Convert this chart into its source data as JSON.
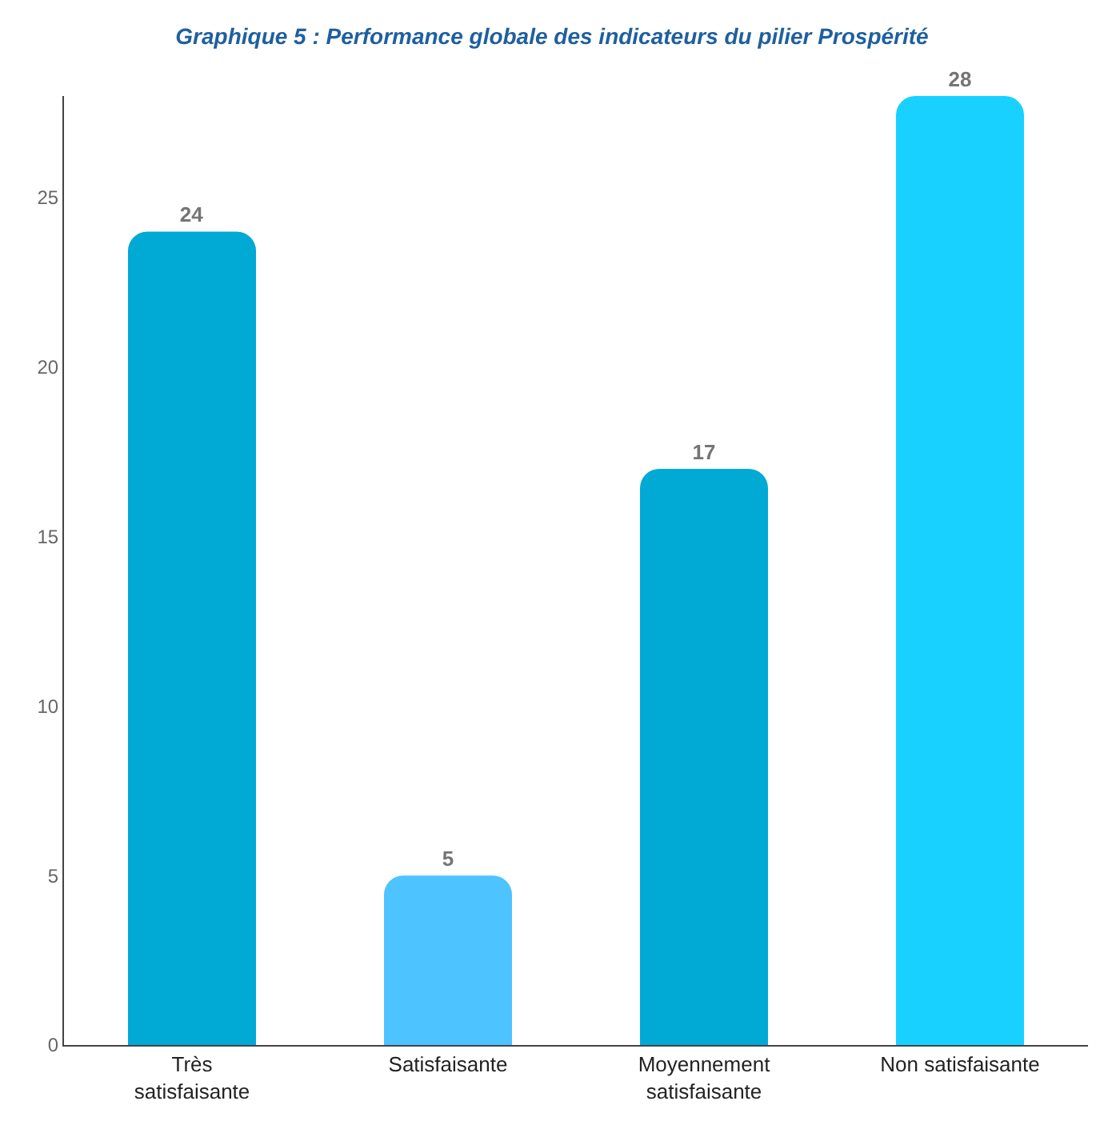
{
  "chart_data": {
    "type": "bar",
    "title": "Graphique 5 : Performance globale des indicateurs du pilier Prospérité",
    "categories": [
      "Très satisfaisante",
      "Satisfaisante",
      "Moyennement satisfaisante",
      "Non satisfaisante"
    ],
    "values": [
      24,
      5,
      17,
      28
    ],
    "colors": [
      "#00aad4",
      "#4dc3ff",
      "#00aad4",
      "#18d1ff"
    ],
    "ylim": [
      0,
      28
    ],
    "yticks": [
      0,
      5,
      10,
      15,
      20,
      25
    ],
    "grid": false,
    "data_labels": true
  }
}
